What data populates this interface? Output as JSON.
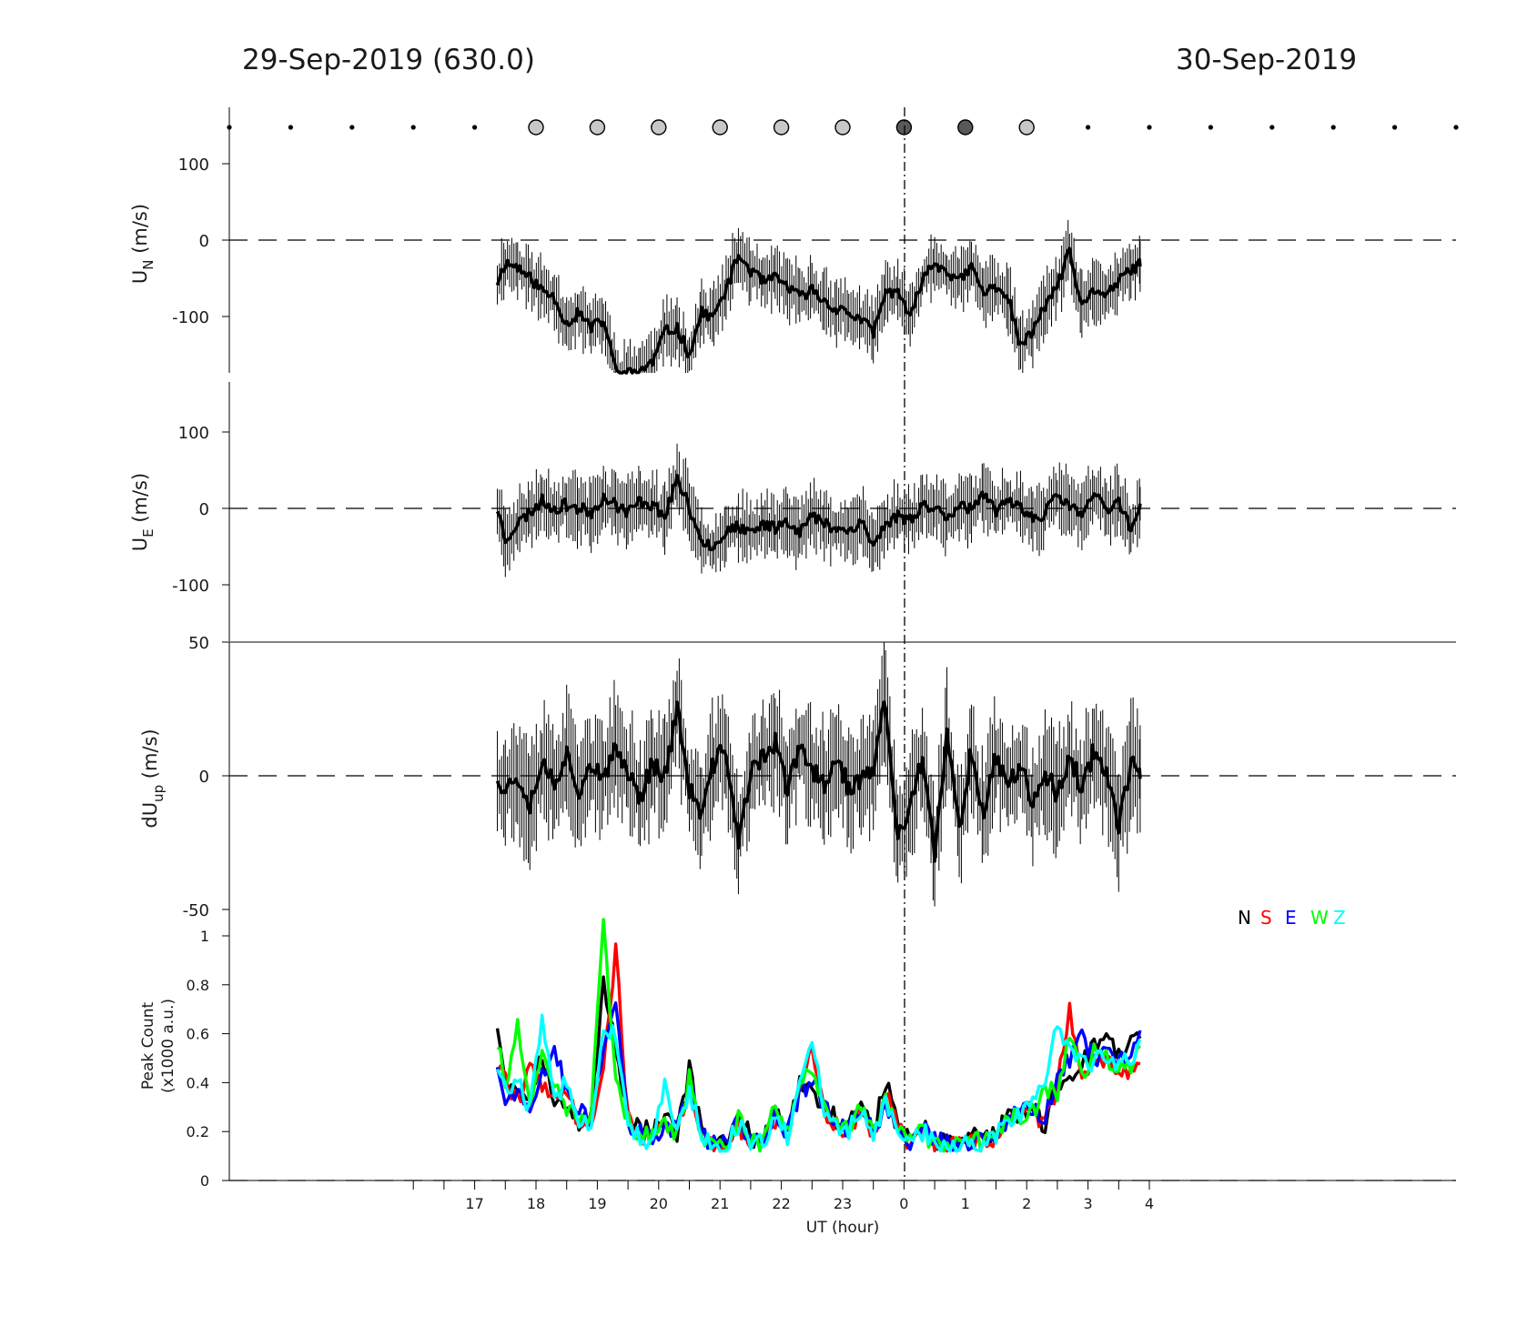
{
  "header": {
    "left_title": "29-Sep-2019 (630.0)",
    "right_title": "30-Sep-2019"
  },
  "chart_data": [
    {
      "type": "scatter",
      "panel": "sky-condition-markers",
      "x": [
        13,
        14,
        15,
        16,
        17,
        18,
        19,
        20,
        21,
        22,
        23,
        24,
        25,
        26,
        27,
        28,
        29,
        30,
        31,
        32,
        33
      ],
      "marker": [
        "dot",
        "dot",
        "dot",
        "dot",
        "dot",
        "circle-light",
        "circle-light",
        "circle-light",
        "circle-light",
        "circle-light",
        "circle-light",
        "circle-dark",
        "circle-dark",
        "circle-light",
        "dot",
        "dot",
        "dot",
        "dot",
        "dot",
        "dot",
        "dot"
      ],
      "colors": {
        "light": "#c8c8c8",
        "dark": "#595959",
        "dot": "#000000"
      }
    },
    {
      "type": "line",
      "panel": "UN",
      "ylabel": "U",
      "ylabel_sub": "N",
      "ylabel_unit": " (m/s)",
      "ylim": [
        -175,
        100
      ],
      "yticks": [
        "100",
        "0",
        "-100"
      ],
      "ytick_values": [
        100,
        0,
        -100
      ],
      "error_bars": true,
      "zero_line": "dashed",
      "series": [
        {
          "color": "#000000",
          "x": [
            17.37,
            17.5,
            17.7,
            17.9,
            18.1,
            18.3,
            18.5,
            18.7,
            18.9,
            19.1,
            19.3,
            19.5,
            19.7,
            19.9,
            20.1,
            20.3,
            20.5,
            20.7,
            20.9,
            21.1,
            21.3,
            21.5,
            21.7,
            21.9,
            22.1,
            22.3,
            22.5,
            22.7,
            22.9,
            23.1,
            23.3,
            23.5,
            23.7,
            23.9,
            24.1,
            24.3,
            24.5,
            24.7,
            24.9,
            25.1,
            25.3,
            25.5,
            25.7,
            25.9,
            26.1,
            26.3,
            26.5,
            26.7,
            26.9,
            27.1,
            27.3,
            27.5,
            27.7,
            27.85
          ],
          "y": [
            -55,
            -30,
            -35,
            -50,
            -65,
            -75,
            -110,
            -95,
            -115,
            -105,
            -170,
            -175,
            -170,
            -160,
            -120,
            -115,
            -150,
            -95,
            -100,
            -65,
            -20,
            -40,
            -55,
            -50,
            -60,
            -75,
            -65,
            -80,
            -90,
            -95,
            -105,
            -120,
            -70,
            -65,
            -105,
            -50,
            -30,
            -40,
            -55,
            -35,
            -70,
            -60,
            -75,
            -140,
            -120,
            -85,
            -60,
            -15,
            -90,
            -65,
            -70,
            -55,
            -40,
            -30
          ]
        }
      ]
    },
    {
      "type": "line",
      "panel": "UE",
      "ylabel": "U",
      "ylabel_sub": "E",
      "ylabel_unit": " (m/s)",
      "ylim": [
        -175,
        100
      ],
      "yticks": [
        "100",
        "0",
        "-100"
      ],
      "ytick_values": [
        100,
        0,
        -100
      ],
      "error_bars": true,
      "zero_line": "dashed",
      "series": [
        {
          "color": "#000000",
          "x": [
            17.37,
            17.5,
            17.7,
            17.9,
            18.1,
            18.3,
            18.5,
            18.7,
            18.9,
            19.1,
            19.3,
            19.5,
            19.7,
            19.9,
            20.1,
            20.3,
            20.5,
            20.7,
            20.9,
            21.1,
            21.3,
            21.5,
            21.7,
            21.9,
            22.1,
            22.3,
            22.5,
            22.7,
            22.9,
            23.1,
            23.3,
            23.5,
            23.7,
            23.9,
            24.1,
            24.3,
            24.5,
            24.7,
            24.9,
            25.1,
            25.3,
            25.5,
            25.7,
            25.9,
            26.1,
            26.3,
            26.5,
            26.7,
            26.9,
            27.1,
            27.3,
            27.5,
            27.7,
            27.85
          ],
          "y": [
            0,
            -40,
            -20,
            -5,
            10,
            0,
            5,
            0,
            -5,
            15,
            5,
            -5,
            10,
            5,
            -10,
            40,
            0,
            -40,
            -50,
            -30,
            -25,
            -35,
            -20,
            -25,
            -15,
            -30,
            -10,
            -20,
            -25,
            -30,
            -15,
            -50,
            -20,
            -10,
            -15,
            5,
            0,
            -10,
            5,
            0,
            15,
            -5,
            10,
            5,
            -15,
            -5,
            15,
            5,
            -10,
            20,
            -5,
            10,
            -25,
            0
          ]
        }
      ]
    },
    {
      "type": "line",
      "panel": "dUup",
      "ylabel": "dU",
      "ylabel_sub": "up",
      "ylabel_unit": " (m/s)",
      "ylim": [
        -50,
        50
      ],
      "yticks": [
        "50",
        "0",
        "-50"
      ],
      "ytick_values": [
        50,
        0,
        -50
      ],
      "error_bars": true,
      "zero_line": "dashed",
      "series": [
        {
          "color": "#000000",
          "x": [
            17.37,
            17.5,
            17.7,
            17.9,
            18.1,
            18.3,
            18.5,
            18.7,
            18.9,
            19.1,
            19.3,
            19.5,
            19.7,
            19.9,
            20.1,
            20.3,
            20.5,
            20.7,
            20.9,
            21.1,
            21.3,
            21.5,
            21.7,
            21.9,
            22.1,
            22.3,
            22.5,
            22.7,
            22.9,
            23.1,
            23.3,
            23.5,
            23.7,
            23.9,
            24.1,
            24.3,
            24.5,
            24.7,
            24.9,
            25.1,
            25.3,
            25.5,
            25.7,
            25.9,
            26.1,
            26.3,
            26.5,
            26.7,
            26.9,
            27.1,
            27.3,
            27.5,
            27.7,
            27.85
          ],
          "y": [
            0,
            -5,
            0,
            -10,
            5,
            -2,
            8,
            -5,
            5,
            -3,
            10,
            2,
            -8,
            5,
            0,
            25,
            -5,
            -15,
            5,
            10,
            -25,
            0,
            8,
            12,
            -5,
            10,
            2,
            -3,
            8,
            -5,
            -2,
            3,
            28,
            -25,
            -10,
            5,
            -30,
            15,
            -20,
            10,
            -15,
            8,
            -5,
            6,
            -10,
            2,
            -8,
            8,
            -5,
            10,
            2,
            -18,
            4,
            0
          ]
        }
      ]
    },
    {
      "type": "line",
      "panel": "peak-count",
      "ylabel": "Peak Count",
      "ylabel_line2": "(x1000 a.u.)",
      "ylim": [
        0,
        1.05
      ],
      "yticks": [
        "1",
        "0.8",
        "0.6",
        "0.4",
        "0.2",
        "0"
      ],
      "ytick_values": [
        1,
        0.8,
        0.6,
        0.4,
        0.2,
        0
      ],
      "xlabel": "UT (hour)",
      "xlim": [
        13,
        33
      ],
      "xticks": [
        "17",
        "18",
        "19",
        "20",
        "21",
        "22",
        "23",
        "0",
        "1",
        "2",
        "3",
        "4"
      ],
      "xtick_values": [
        17,
        18,
        19,
        20,
        21,
        22,
        23,
        24,
        25,
        26,
        27,
        28
      ],
      "x": [
        17.37,
        17.5,
        17.7,
        17.9,
        18.1,
        18.3,
        18.5,
        18.7,
        18.9,
        19.1,
        19.3,
        19.5,
        19.7,
        19.9,
        20.1,
        20.3,
        20.5,
        20.7,
        20.9,
        21.1,
        21.3,
        21.5,
        21.7,
        21.9,
        22.1,
        22.3,
        22.5,
        22.7,
        22.9,
        23.1,
        23.3,
        23.5,
        23.7,
        23.9,
        24.1,
        24.3,
        24.5,
        24.7,
        24.9,
        25.1,
        25.3,
        25.5,
        25.7,
        25.9,
        26.1,
        26.3,
        26.5,
        26.7,
        26.9,
        27.1,
        27.3,
        27.5,
        27.7,
        27.85
      ],
      "series": [
        {
          "name": "N",
          "color": "#000000",
          "y": [
            0.64,
            0.42,
            0.38,
            0.35,
            0.52,
            0.32,
            0.3,
            0.22,
            0.28,
            0.8,
            0.55,
            0.26,
            0.22,
            0.2,
            0.25,
            0.2,
            0.45,
            0.2,
            0.16,
            0.14,
            0.26,
            0.18,
            0.16,
            0.3,
            0.2,
            0.4,
            0.38,
            0.3,
            0.25,
            0.22,
            0.34,
            0.2,
            0.4,
            0.24,
            0.16,
            0.22,
            0.16,
            0.15,
            0.14,
            0.18,
            0.16,
            0.2,
            0.26,
            0.26,
            0.3,
            0.22,
            0.4,
            0.42,
            0.48,
            0.55,
            0.6,
            0.5,
            0.55,
            0.62
          ]
        },
        {
          "name": "S",
          "color": "#ff0000",
          "y": [
            0.46,
            0.4,
            0.33,
            0.45,
            0.4,
            0.35,
            0.34,
            0.24,
            0.25,
            0.45,
            0.95,
            0.25,
            0.18,
            0.17,
            0.22,
            0.18,
            0.4,
            0.18,
            0.15,
            0.14,
            0.22,
            0.17,
            0.15,
            0.25,
            0.18,
            0.38,
            0.55,
            0.28,
            0.22,
            0.2,
            0.3,
            0.18,
            0.35,
            0.22,
            0.15,
            0.2,
            0.15,
            0.14,
            0.14,
            0.16,
            0.15,
            0.18,
            0.24,
            0.3,
            0.28,
            0.24,
            0.38,
            0.7,
            0.45,
            0.48,
            0.5,
            0.45,
            0.45,
            0.48
          ]
        },
        {
          "name": "E",
          "color": "#0000ff",
          "y": [
            0.48,
            0.3,
            0.38,
            0.28,
            0.42,
            0.55,
            0.35,
            0.28,
            0.25,
            0.55,
            0.75,
            0.24,
            0.2,
            0.16,
            0.22,
            0.2,
            0.4,
            0.19,
            0.15,
            0.14,
            0.24,
            0.17,
            0.16,
            0.28,
            0.19,
            0.36,
            0.4,
            0.3,
            0.22,
            0.21,
            0.3,
            0.19,
            0.32,
            0.23,
            0.15,
            0.21,
            0.16,
            0.15,
            0.14,
            0.17,
            0.15,
            0.19,
            0.25,
            0.3,
            0.28,
            0.26,
            0.4,
            0.5,
            0.58,
            0.5,
            0.52,
            0.48,
            0.5,
            0.58
          ]
        },
        {
          "name": "W",
          "color": "#00ff00",
          "y": [
            0.56,
            0.4,
            0.62,
            0.34,
            0.5,
            0.38,
            0.3,
            0.24,
            0.28,
            1.03,
            0.4,
            0.25,
            0.19,
            0.17,
            0.24,
            0.18,
            0.42,
            0.19,
            0.15,
            0.14,
            0.25,
            0.16,
            0.15,
            0.3,
            0.18,
            0.4,
            0.45,
            0.28,
            0.23,
            0.2,
            0.32,
            0.19,
            0.35,
            0.22,
            0.15,
            0.2,
            0.15,
            0.14,
            0.14,
            0.17,
            0.15,
            0.18,
            0.25,
            0.26,
            0.28,
            0.38,
            0.35,
            0.6,
            0.42,
            0.52,
            0.5,
            0.47,
            0.45,
            0.56
          ]
        },
        {
          "name": "Z",
          "color": "#00ffff",
          "y": [
            0.47,
            0.36,
            0.4,
            0.3,
            0.65,
            0.33,
            0.4,
            0.22,
            0.25,
            0.6,
            0.6,
            0.24,
            0.18,
            0.16,
            0.4,
            0.18,
            0.38,
            0.18,
            0.15,
            0.14,
            0.23,
            0.16,
            0.15,
            0.27,
            0.18,
            0.37,
            0.58,
            0.29,
            0.22,
            0.2,
            0.3,
            0.18,
            0.33,
            0.22,
            0.15,
            0.2,
            0.15,
            0.14,
            0.14,
            0.17,
            0.15,
            0.18,
            0.25,
            0.28,
            0.35,
            0.42,
            0.63,
            0.55,
            0.5,
            0.48,
            0.52,
            0.48,
            0.5,
            0.55
          ]
        }
      ],
      "legend": {
        "placement": "top-right",
        "labels": [
          "N",
          "S",
          "E",
          "W",
          "Z"
        ]
      }
    }
  ]
}
